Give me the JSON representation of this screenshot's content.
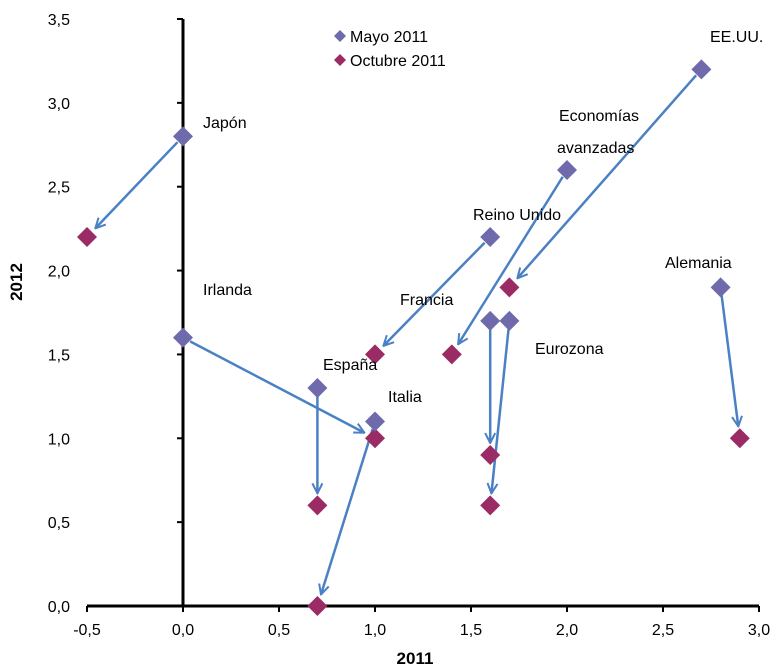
{
  "chart_data": {
    "type": "scatter",
    "xlabel": "2011",
    "ylabel": "2012",
    "xlim": [
      -0.5,
      3.0
    ],
    "ylim": [
      0.0,
      3.5
    ],
    "x_ticks": [
      "-0,5",
      "0,0",
      "0,5",
      "1,0",
      "1,5",
      "2,0",
      "2,5",
      "3,0"
    ],
    "y_ticks": [
      "0,0",
      "0,5",
      "1,0",
      "1,5",
      "2,0",
      "2,5",
      "3,0",
      "3,5"
    ],
    "legend_position": "top-center",
    "colors": {
      "may": "#6F6AAB",
      "october": "#9B2B64",
      "arrow": "#4A80C4"
    },
    "series": [
      {
        "name": "Mayo 2011",
        "points": [
          {
            "label": "Japón",
            "x": 0.0,
            "y": 2.8
          },
          {
            "label": "Irlanda",
            "x": 0.0,
            "y": 1.6
          },
          {
            "label": "España",
            "x": 0.7,
            "y": 1.3
          },
          {
            "label": "Italia",
            "x": 1.0,
            "y": 1.1
          },
          {
            "label": "Francia",
            "x": 1.6,
            "y": 1.7
          },
          {
            "label": "Eurozona",
            "x": 1.7,
            "y": 1.7
          },
          {
            "label": "Reino Unido",
            "x": 1.6,
            "y": 2.2
          },
          {
            "label": "Economías avanzadas",
            "x": 2.0,
            "y": 2.6
          },
          {
            "label": "EE.UU.",
            "x": 2.7,
            "y": 3.2
          },
          {
            "label": "Alemania",
            "x": 2.8,
            "y": 1.9
          }
        ]
      },
      {
        "name": "Octubre 2011",
        "points": [
          {
            "label": "Japón",
            "x": -0.5,
            "y": 2.2
          },
          {
            "label": "Irlanda",
            "x": 1.0,
            "y": 1.0
          },
          {
            "label": "España",
            "x": 0.7,
            "y": 0.6
          },
          {
            "label": "Italia",
            "x": 0.7,
            "y": 0.0
          },
          {
            "label": "Francia",
            "x": 1.6,
            "y": 0.9
          },
          {
            "label": "Eurozona",
            "x": 1.6,
            "y": 0.6
          },
          {
            "label": "Reino Unido",
            "x": 1.0,
            "y": 1.5
          },
          {
            "label": "Economías avanzadas",
            "x": 1.4,
            "y": 1.5
          },
          {
            "label": "EE.UU.",
            "x": 1.7,
            "y": 1.9
          },
          {
            "label": "Alemania",
            "x": 2.9,
            "y": 1.0
          }
        ]
      }
    ],
    "annotations": [
      {
        "text": "Japón"
      },
      {
        "text": "Irlanda"
      },
      {
        "text": "España"
      },
      {
        "text": "Italia"
      },
      {
        "text": "Francia"
      },
      {
        "text": "Eurozona"
      },
      {
        "text": "Reino Unido"
      },
      {
        "text": "Economías"
      },
      {
        "text": "avanzadas"
      },
      {
        "text": "EE.UU."
      },
      {
        "text": "Alemania"
      }
    ]
  }
}
